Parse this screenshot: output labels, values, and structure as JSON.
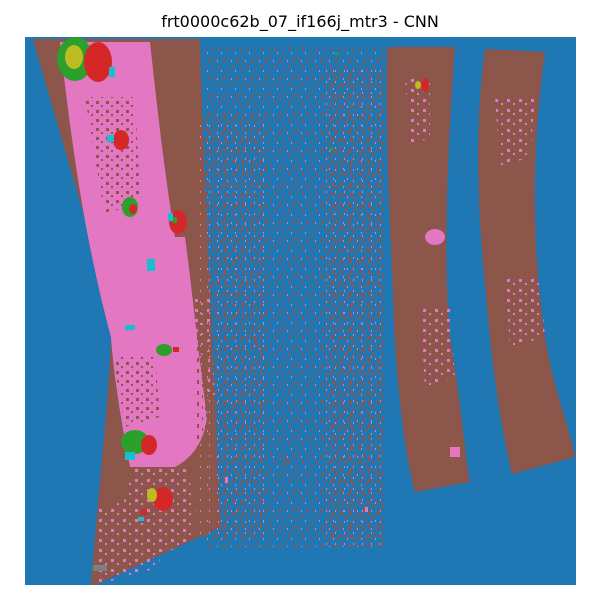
{
  "figure": {
    "title": "frt0000c62b_07_if166j_mtr3 - CNN"
  },
  "colors": {
    "background": "#1f77b4",
    "brown": "#8c564b",
    "pink": "#e377c2",
    "red": "#d62728",
    "green": "#2ca02c",
    "olive": "#bcbd22",
    "cyan": "#17becf",
    "gray": "#7f7f7f"
  }
}
